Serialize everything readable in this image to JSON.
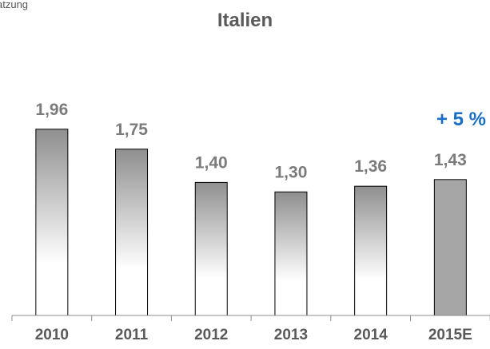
{
  "header": {
    "corner_text": "atzung"
  },
  "chart_data": {
    "type": "bar",
    "title": "Italien",
    "categories": [
      "2010",
      "2011",
      "2012",
      "2013",
      "2014",
      "2015E"
    ],
    "values": [
      1.96,
      1.75,
      1.4,
      1.3,
      1.36,
      1.43
    ],
    "value_labels": [
      "1,96",
      "1,75",
      "1,40",
      "1,30",
      "1,36",
      "1,43"
    ],
    "ylim": [
      0,
      2.2
    ],
    "grid": false,
    "legend": "none",
    "annotation": "+ 5 %",
    "colors": {
      "bar_gradient_top": "#8f8f8f",
      "bar_gradient_bottom": "#ffffff",
      "bar_solid": "#a6a6a6",
      "bar_outline": "#000000",
      "value_label": "#7b7b7b",
      "tick_label": "#595959",
      "annotation": "#1a6fc4"
    }
  }
}
